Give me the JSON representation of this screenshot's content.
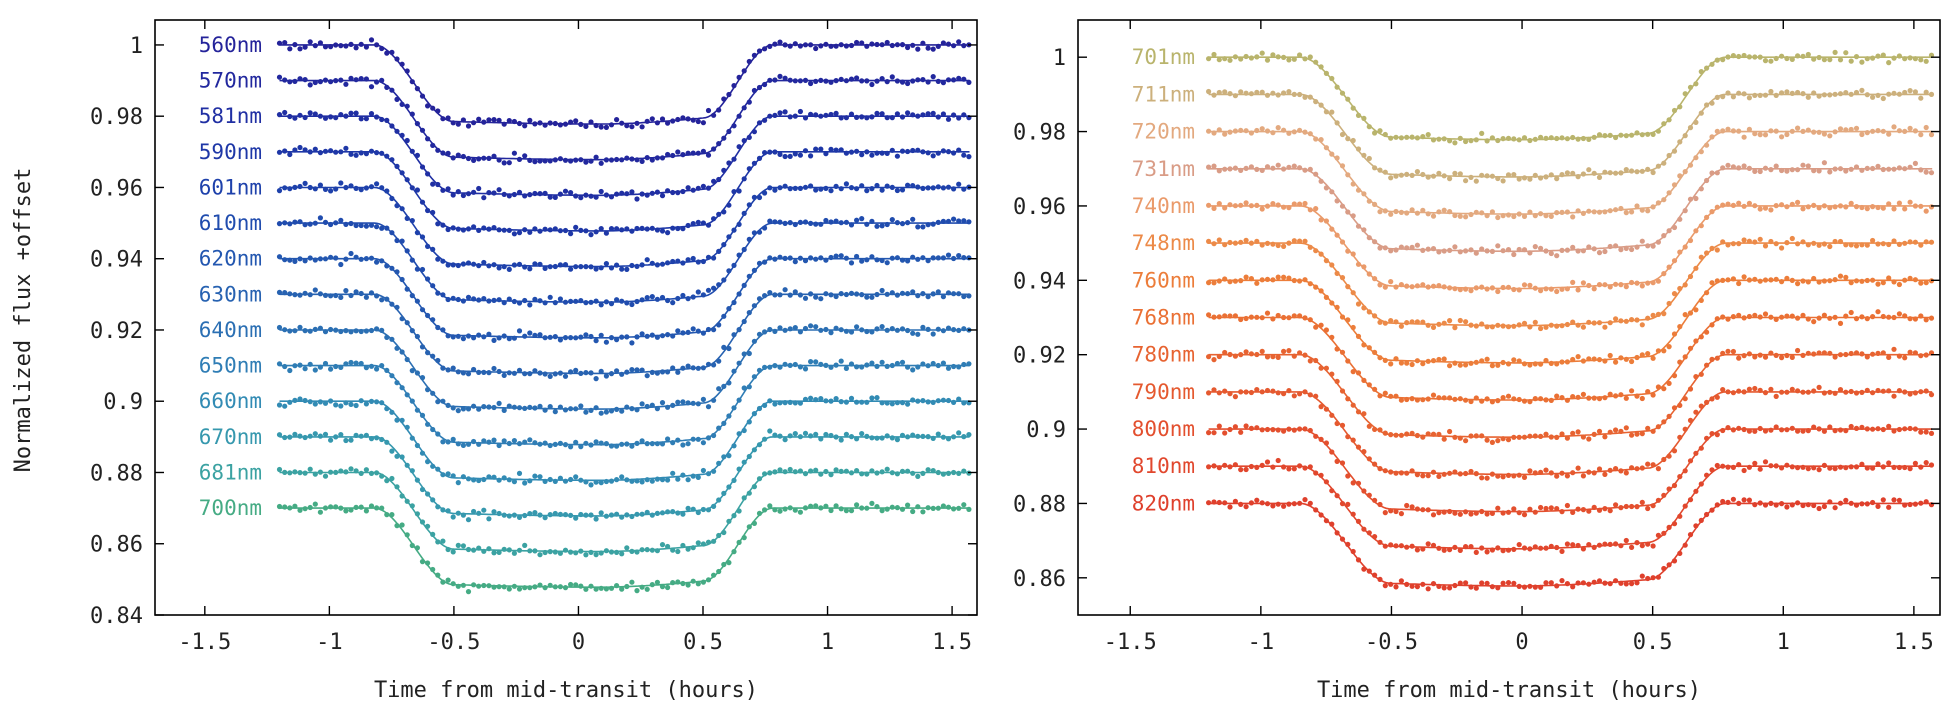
{
  "figure": {
    "ylabel": "Normalized flux +offset"
  },
  "chart_data": [
    {
      "type": "scatter",
      "panel": "left",
      "xlabel": "Time from mid-transit (hours)",
      "ylabel": "Normalized flux +offset",
      "xlim": [
        -1.7,
        1.6
      ],
      "ylim": [
        0.84,
        1.007
      ],
      "x_ticks": [
        -1.5,
        -1,
        -0.5,
        0,
        0.5,
        1,
        1.5
      ],
      "x_tick_labels": [
        "-1.5",
        "-1",
        "-0.5",
        "0",
        "0.5",
        "1",
        "1.5"
      ],
      "y_ticks": [
        0.84,
        0.86,
        0.88,
        0.9,
        0.92,
        0.94,
        0.96,
        0.98,
        1
      ],
      "y_tick_labels": [
        "0.84",
        "0.86",
        "0.88",
        "0.9",
        "0.92",
        "0.94",
        "0.96",
        "0.98",
        "1"
      ],
      "grid": false,
      "legend": "inline labels at left of each light curve",
      "transit_model": {
        "x_range": [
          -1.2,
          1.57
        ],
        "ingress": [
          -0.82,
          -0.5
        ],
        "egress": [
          0.5,
          0.78
        ],
        "depth_start": 0.0215,
        "depth_min": 0.0222,
        "depth_end": 0.0205,
        "min_at": 0.1
      },
      "series": [
        {
          "name": "560nm",
          "baseline": 1.0,
          "color": "#24239a"
        },
        {
          "name": "570nm",
          "baseline": 0.99,
          "color": "#22289e"
        },
        {
          "name": "581nm",
          "baseline": 0.98,
          "color": "#202fa3"
        },
        {
          "name": "590nm",
          "baseline": 0.97,
          "color": "#1e37a7"
        },
        {
          "name": "601nm",
          "baseline": 0.96,
          "color": "#1e41ab"
        },
        {
          "name": "610nm",
          "baseline": 0.95,
          "color": "#204cae"
        },
        {
          "name": "620nm",
          "baseline": 0.94,
          "color": "#2357b0"
        },
        {
          "name": "630nm",
          "baseline": 0.93,
          "color": "#2762b1"
        },
        {
          "name": "640nm",
          "baseline": 0.92,
          "color": "#2b6fb3"
        },
        {
          "name": "650nm",
          "baseline": 0.91,
          "color": "#2f7db5"
        },
        {
          "name": "660nm",
          "baseline": 0.9,
          "color": "#328bb4"
        },
        {
          "name": "670nm",
          "baseline": 0.89,
          "color": "#3698ae"
        },
        {
          "name": "681nm",
          "baseline": 0.88,
          "color": "#3ba2a2"
        },
        {
          "name": "700nm",
          "baseline": 0.87,
          "color": "#45ab84"
        }
      ]
    },
    {
      "type": "scatter",
      "panel": "right",
      "xlabel": "Time from mid-transit (hours)",
      "ylim": [
        0.85,
        1.01
      ],
      "xlim": [
        -1.7,
        1.6
      ],
      "x_ticks": [
        -1.5,
        -1,
        -0.5,
        0,
        0.5,
        1,
        1.5
      ],
      "x_tick_labels": [
        "-1.5",
        "-1",
        "-0.5",
        "0",
        "0.5",
        "1",
        "1.5"
      ],
      "y_ticks": [
        0.86,
        0.88,
        0.9,
        0.92,
        0.94,
        0.96,
        0.98,
        1
      ],
      "y_tick_labels": [
        "0.86",
        "0.88",
        "0.9",
        "0.92",
        "0.94",
        "0.96",
        "0.98",
        "1"
      ],
      "grid": false,
      "legend": "inline labels at left of each light curve",
      "transit_model": {
        "x_range": [
          -1.2,
          1.57
        ],
        "ingress": [
          -0.85,
          -0.5
        ],
        "egress": [
          0.48,
          0.78
        ],
        "depth_start": 0.0215,
        "depth_min": 0.0222,
        "depth_end": 0.0205,
        "min_at": 0.0
      },
      "series": [
        {
          "name": "701nm",
          "baseline": 1.0,
          "color": "#b9b46c"
        },
        {
          "name": "711nm",
          "baseline": 0.99,
          "color": "#ccb07c"
        },
        {
          "name": "720nm",
          "baseline": 0.98,
          "color": "#e3a97f"
        },
        {
          "name": "731nm",
          "baseline": 0.97,
          "color": "#d99c86"
        },
        {
          "name": "740nm",
          "baseline": 0.96,
          "color": "#ea9a6a"
        },
        {
          "name": "748nm",
          "baseline": 0.95,
          "color": "#ec8a48"
        },
        {
          "name": "760nm",
          "baseline": 0.94,
          "color": "#ec7d3a"
        },
        {
          "name": "768nm",
          "baseline": 0.93,
          "color": "#ea7034"
        },
        {
          "name": "780nm",
          "baseline": 0.92,
          "color": "#e76331"
        },
        {
          "name": "790nm",
          "baseline": 0.91,
          "color": "#e5592f"
        },
        {
          "name": "800nm",
          "baseline": 0.9,
          "color": "#e34f2e"
        },
        {
          "name": "810nm",
          "baseline": 0.89,
          "color": "#e1472d"
        },
        {
          "name": "820nm",
          "baseline": 0.88,
          "color": "#df402c"
        }
      ]
    }
  ]
}
